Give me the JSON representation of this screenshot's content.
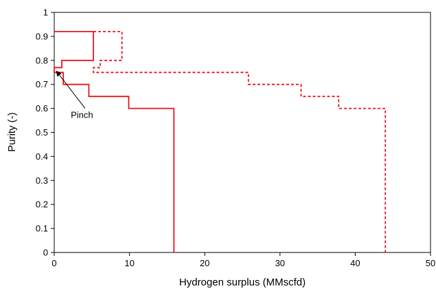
{
  "chart_data": {
    "type": "line",
    "xlabel": "Hydrogen surplus (MMscfd)",
    "ylabel": "Purity (-)",
    "xlim": [
      0,
      50
    ],
    "ylim": [
      0,
      1
    ],
    "x_ticks": [
      0,
      10,
      20,
      30,
      40,
      50
    ],
    "y_ticks": [
      0,
      0.1,
      0.2,
      0.3,
      0.4,
      0.5,
      0.6,
      0.7,
      0.8,
      0.9,
      1
    ],
    "x_tick_labels": [
      "0",
      "10",
      "20",
      "30",
      "40",
      "50"
    ],
    "y_tick_labels": [
      "0",
      "0.1",
      "0.2",
      "0.3",
      "0.4",
      "0.5",
      "0.6",
      "0.7",
      "0.8",
      "0.9",
      "1"
    ],
    "grid": false,
    "legend": "none",
    "series": [
      {
        "style": "solid",
        "color": "#e8141b",
        "points": [
          [
            0,
            0.92
          ],
          [
            5.2,
            0.92
          ],
          [
            5.2,
            0.8
          ],
          [
            1.0,
            0.8
          ],
          [
            1.0,
            0.77
          ],
          [
            0,
            0.77
          ],
          [
            0,
            0.75
          ],
          [
            1.2,
            0.75
          ],
          [
            1.2,
            0.7
          ],
          [
            4.6,
            0.7
          ],
          [
            4.6,
            0.65
          ],
          [
            9.9,
            0.65
          ],
          [
            9.9,
            0.6
          ],
          [
            15.9,
            0.6
          ],
          [
            15.9,
            0
          ]
        ]
      },
      {
        "style": "dashed",
        "color": "#e8141b",
        "points": [
          [
            5.2,
            0.92
          ],
          [
            9.0,
            0.92
          ],
          [
            9.0,
            0.8
          ],
          [
            6.1,
            0.8
          ],
          [
            6.1,
            0.77
          ],
          [
            5.2,
            0.77
          ],
          [
            5.2,
            0.75
          ],
          [
            25.8,
            0.75
          ],
          [
            25.8,
            0.7
          ],
          [
            32.8,
            0.7
          ],
          [
            32.8,
            0.65
          ],
          [
            37.8,
            0.65
          ],
          [
            37.8,
            0.6
          ],
          [
            44.0,
            0.6
          ],
          [
            44.0,
            0
          ]
        ]
      }
    ],
    "annotations": [
      {
        "text": "Pinch",
        "text_at": [
          2.2,
          0.56
        ],
        "arrow_from": [
          4.1,
          0.6
        ],
        "arrow_to": [
          0.3,
          0.755
        ]
      }
    ]
  }
}
